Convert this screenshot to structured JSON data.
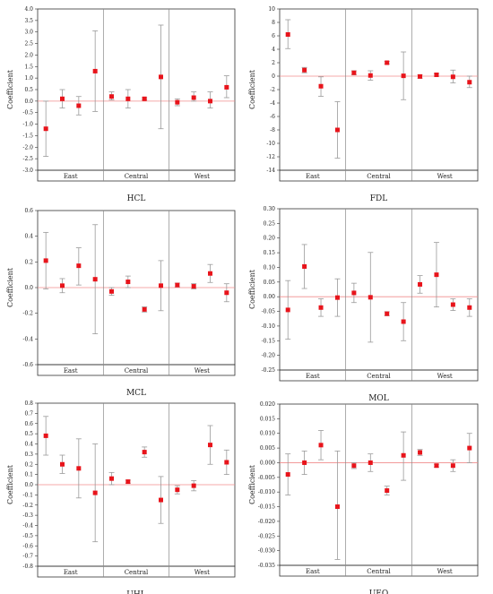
{
  "chart_data": [
    {
      "type": "scatter",
      "title": "HCL",
      "ylabel": "Coefficient",
      "ylim": [
        -3.0,
        4.0
      ],
      "ytick_step": 0.5,
      "ytick_decimals": 1,
      "groups": [
        "East",
        "Central",
        "West"
      ],
      "points_per_group": [
        4,
        4,
        4
      ],
      "series": [
        {
          "name": "",
          "values": [
            -1.2,
            0.1,
            -0.2,
            1.3,
            0.2,
            0.1,
            0.1,
            1.05,
            -0.05,
            0.15,
            0.0,
            0.6
          ],
          "lower": [
            -2.4,
            -0.3,
            -0.6,
            -0.45,
            0.05,
            -0.3,
            0.05,
            -1.2,
            -0.2,
            0.0,
            -0.3,
            0.15
          ],
          "upper": [
            0.0,
            0.5,
            0.2,
            3.05,
            0.4,
            0.5,
            0.15,
            3.3,
            0.1,
            0.4,
            0.4,
            1.1
          ]
        }
      ]
    },
    {
      "type": "scatter",
      "title": "FDL",
      "ylabel": "Coefficient",
      "ylim": [
        -14,
        10
      ],
      "ytick_step": 2,
      "ytick_decimals": 0,
      "groups": [
        "East",
        "Central",
        "West"
      ],
      "points_per_group": [
        4,
        4,
        4
      ],
      "series": [
        {
          "name": "",
          "values": [
            6.2,
            0.9,
            -1.5,
            -8.0,
            0.5,
            0.1,
            2.0,
            0.05,
            -0.05,
            0.2,
            -0.1,
            -0.9
          ],
          "lower": [
            4.1,
            0.5,
            -3.0,
            -12.2,
            0.2,
            -0.6,
            1.8,
            -3.5,
            -0.3,
            0.0,
            -1.0,
            -1.7
          ],
          "upper": [
            8.4,
            1.3,
            -0.1,
            -3.8,
            0.8,
            0.8,
            2.2,
            3.6,
            0.2,
            0.4,
            0.9,
            0.0
          ]
        }
      ]
    },
    {
      "type": "scatter",
      "title": "MCL",
      "ylabel": "Coefficient",
      "ylim": [
        -0.6,
        0.6
      ],
      "ytick_step": 0.2,
      "ytick_decimals": 1,
      "groups": [
        "East",
        "Central",
        "West"
      ],
      "points_per_group": [
        4,
        4,
        4
      ],
      "series": [
        {
          "name": "",
          "values": [
            0.21,
            0.015,
            0.17,
            0.065,
            -0.03,
            0.045,
            -0.17,
            0.015,
            0.02,
            0.01,
            0.11,
            -0.04
          ],
          "lower": [
            -0.01,
            -0.04,
            0.02,
            -0.36,
            -0.06,
            0.0,
            -0.19,
            -0.18,
            0.005,
            -0.01,
            0.04,
            -0.11
          ],
          "upper": [
            0.43,
            0.07,
            0.31,
            0.49,
            0.0,
            0.09,
            -0.15,
            0.21,
            0.035,
            0.03,
            0.18,
            0.03
          ]
        }
      ]
    },
    {
      "type": "scatter",
      "title": "MOL",
      "ylabel": "Coefficient",
      "ylim": [
        -0.25,
        0.3
      ],
      "ytick_step": 0.05,
      "ytick_decimals": 2,
      "groups": [
        "East",
        "Central",
        "West"
      ],
      "points_per_group": [
        4,
        4,
        4
      ],
      "series": [
        {
          "name": "",
          "values": [
            -0.045,
            0.103,
            -0.037,
            -0.003,
            0.013,
            -0.002,
            -0.058,
            -0.085,
            0.042,
            0.075,
            -0.027,
            -0.037
          ],
          "lower": [
            -0.145,
            0.028,
            -0.067,
            -0.067,
            -0.02,
            -0.155,
            -0.065,
            -0.15,
            0.012,
            -0.035,
            -0.047,
            -0.067
          ],
          "upper": [
            0.055,
            0.178,
            -0.007,
            0.061,
            0.046,
            0.151,
            -0.051,
            -0.02,
            0.072,
            0.185,
            -0.007,
            -0.007
          ]
        }
      ]
    },
    {
      "type": "scatter",
      "title": "UHL",
      "ylabel": "Coefficient",
      "ylim": [
        -0.8,
        0.8
      ],
      "ytick_step": 0.1,
      "ytick_decimals": 1,
      "groups": [
        "East",
        "Central",
        "West"
      ],
      "points_per_group": [
        4,
        4,
        4
      ],
      "series": [
        {
          "name": "",
          "values": [
            0.48,
            0.2,
            0.16,
            -0.08,
            0.06,
            0.03,
            0.32,
            -0.15,
            -0.05,
            -0.01,
            0.39,
            0.22
          ],
          "lower": [
            0.29,
            0.11,
            -0.13,
            -0.56,
            0.0,
            0.015,
            0.27,
            -0.38,
            -0.09,
            -0.06,
            0.2,
            0.1
          ],
          "upper": [
            0.67,
            0.29,
            0.45,
            0.4,
            0.12,
            0.045,
            0.37,
            0.08,
            -0.01,
            0.04,
            0.58,
            0.34
          ]
        }
      ]
    },
    {
      "type": "scatter",
      "title": "UEQ",
      "ylabel": "Coefficient",
      "ylim": [
        -0.035,
        0.02
      ],
      "ytick_step": 0.005,
      "ytick_decimals": 3,
      "groups": [
        "East",
        "Central",
        "West"
      ],
      "points_per_group": [
        4,
        4,
        4
      ],
      "series": [
        {
          "name": "",
          "values": [
            -0.004,
            0.0,
            0.006,
            -0.015,
            -0.001,
            0.0,
            -0.0095,
            0.0025,
            0.0035,
            -0.001,
            -0.001,
            0.005
          ],
          "lower": [
            -0.011,
            -0.004,
            0.001,
            -0.033,
            -0.002,
            -0.003,
            -0.011,
            -0.006,
            0.0025,
            -0.0015,
            -0.003,
            0.0
          ],
          "upper": [
            0.003,
            0.004,
            0.011,
            0.004,
            0.0,
            0.003,
            -0.008,
            0.0105,
            0.0045,
            -0.0005,
            0.001,
            0.01
          ]
        }
      ]
    }
  ]
}
